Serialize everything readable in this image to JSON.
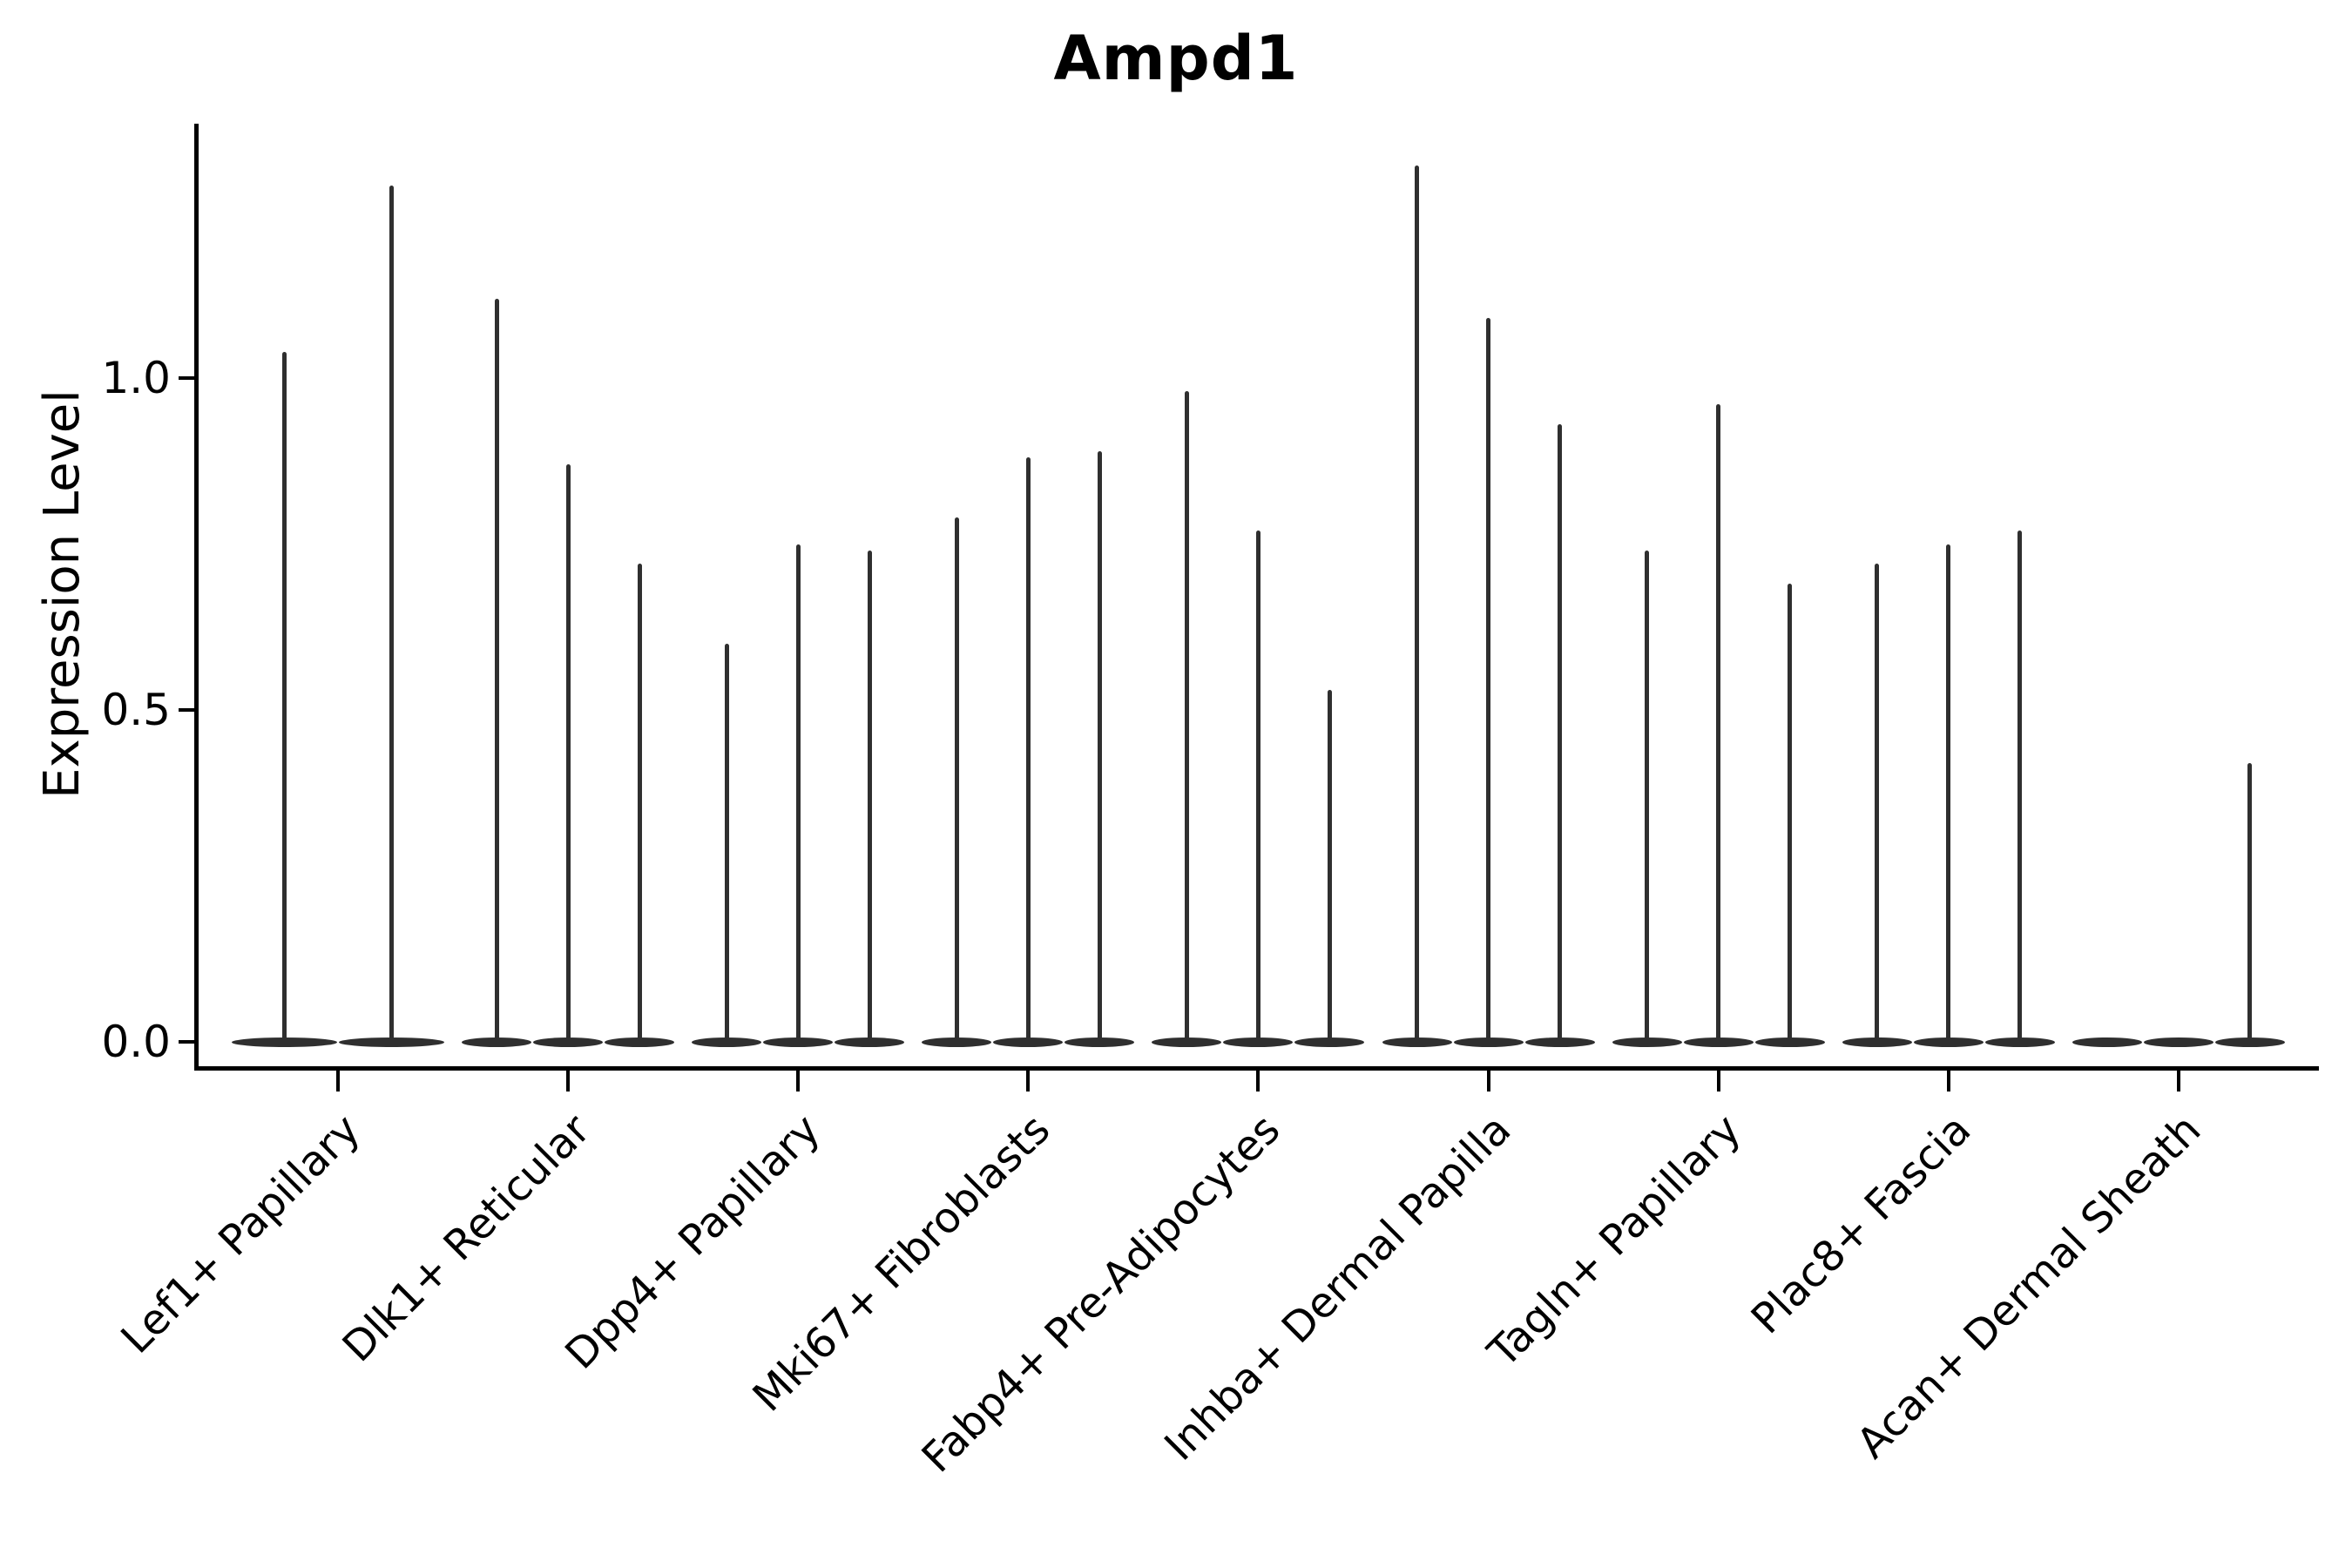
{
  "figure": {
    "title": "Ampd1"
  },
  "chart_data": {
    "type": "violin",
    "title": "Ampd1",
    "xlabel": "",
    "ylabel": "Expression Level",
    "ylim": [
      0,
      1.39
    ],
    "grid": false,
    "legend_position": "none",
    "yticks": [
      {
        "label": "0.0",
        "value": 0.0
      },
      {
        "label": "0.5",
        "value": 0.5
      },
      {
        "label": "1.0",
        "value": 1.0
      }
    ],
    "groups": [
      {
        "label": "Lef1+ Papillary",
        "violin_max_expression": [
          1.04,
          1.29
        ]
      },
      {
        "label": "Dlk1+ Reticular",
        "violin_max_expression": [
          1.12,
          0.87,
          0.72
        ]
      },
      {
        "label": "Dpp4+ Papillary",
        "violin_max_expression": [
          0.6,
          0.75,
          0.74
        ]
      },
      {
        "label": "Mki67+ Fibroblasts",
        "violin_max_expression": [
          0.79,
          0.88,
          0.89
        ]
      },
      {
        "label": "Fabp4+ Pre-Adipocytes",
        "violin_max_expression": [
          0.98,
          0.77,
          0.53
        ]
      },
      {
        "label": "Inhba+ Dermal Papilla",
        "violin_max_expression": [
          1.32,
          1.09,
          0.93
        ]
      },
      {
        "label": "Tagln+ Papillary",
        "violin_max_expression": [
          0.74,
          0.96,
          0.69
        ]
      },
      {
        "label": "Plac8+ Fascia",
        "violin_max_expression": [
          0.72,
          0.75,
          0.77
        ]
      },
      {
        "label": "Acan+ Dermal Sheath",
        "violin_max_expression": [
          0.0,
          0.0,
          0.42
        ]
      }
    ]
  },
  "colors": {
    "ink": "#000000",
    "violin": "#2f2f2f",
    "background": "#ffffff"
  }
}
